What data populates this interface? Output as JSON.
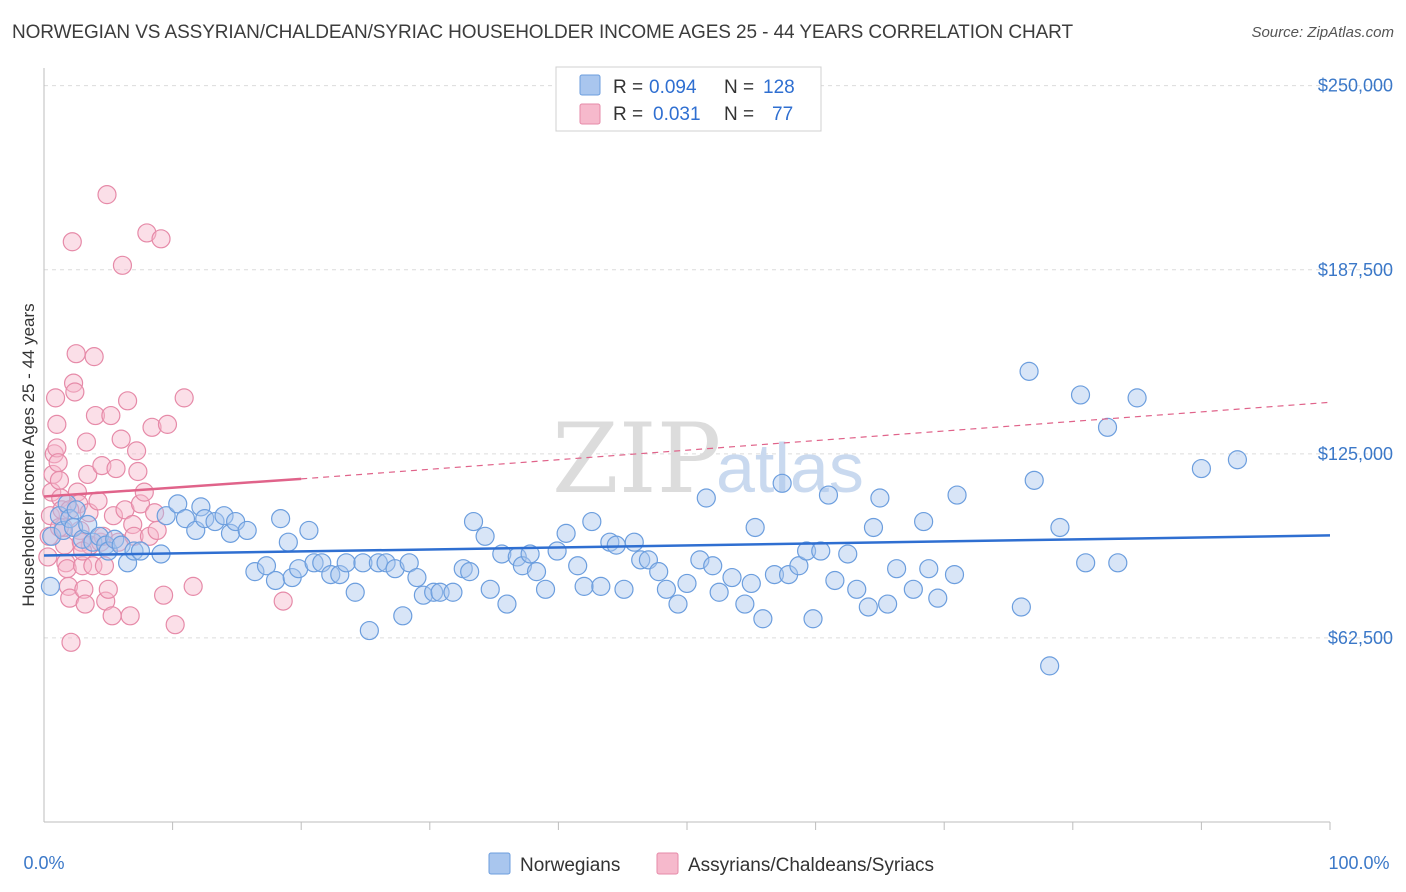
{
  "header": {
    "title": "NORWEGIAN VS ASSYRIAN/CHALDEAN/SYRIAC HOUSEHOLDER INCOME AGES 25 - 44 YEARS CORRELATION CHART",
    "source": "Source: ZipAtlas.com"
  },
  "watermark": {
    "zip": "ZIP",
    "atlas": "atlas"
  },
  "legend_top": {
    "rows": [
      {
        "r_label": "R =",
        "r_value": "0.094",
        "n_label": "N =",
        "n_value": "128"
      },
      {
        "r_label": "R =",
        "r_value": "0.031",
        "n_label": "N =",
        "n_value": "77"
      }
    ]
  },
  "legend_bottom": {
    "items": [
      {
        "label": "Norwegians"
      },
      {
        "label": "Assyrians/Chaldeans/Syriacs"
      }
    ]
  },
  "colors": {
    "blue_fill": "#a9c6ee",
    "blue_stroke": "#6c9ede",
    "blue_line": "#2f6fd1",
    "pink_fill": "#f6b9cc",
    "pink_stroke": "#e68aa8",
    "pink_line": "#e0638a",
    "grid": "#dcdcdc",
    "tick_text": "#3b78c8"
  },
  "chart_data": {
    "type": "scatter",
    "title": "NORWEGIAN VS ASSYRIAN/CHALDEAN/SYRIAC HOUSEHOLDER INCOME AGES 25 - 44 YEARS CORRELATION CHART",
    "xlabel": "",
    "ylabel": "Householder Income Ages 25 - 44 years",
    "xlim": [
      0,
      100
    ],
    "ylim": [
      0,
      256000
    ],
    "x_tick_labels": [
      "0.0%",
      "100.0%"
    ],
    "y_ticks": [
      62500,
      125000,
      187500,
      250000
    ],
    "y_tick_labels": [
      "$62,500",
      "$125,000",
      "$187,500",
      "$250,000"
    ],
    "grid": true,
    "legend_placement": "top-center",
    "series": [
      {
        "name": "Norwegians",
        "r": 0.094,
        "n": 128,
        "trend": {
          "x": [
            0,
            100
          ],
          "y": [
            90500,
            97300
          ]
        },
        "points": [
          [
            0.5,
            80000
          ],
          [
            0.6,
            97000
          ],
          [
            1.2,
            104000
          ],
          [
            1.5,
            99000
          ],
          [
            1.8,
            108000
          ],
          [
            2.0,
            103000
          ],
          [
            2.3,
            100000
          ],
          [
            2.5,
            106000
          ],
          [
            3.0,
            96000
          ],
          [
            3.4,
            101000
          ],
          [
            3.8,
            95000
          ],
          [
            4.3,
            97000
          ],
          [
            4.8,
            94000
          ],
          [
            5.0,
            92000
          ],
          [
            5.5,
            96000
          ],
          [
            6.0,
            94000
          ],
          [
            6.5,
            88000
          ],
          [
            7.0,
            92000
          ],
          [
            7.5,
            92000
          ],
          [
            9.1,
            91000
          ],
          [
            9.5,
            104000
          ],
          [
            10.4,
            108000
          ],
          [
            11.0,
            103000
          ],
          [
            11.8,
            99000
          ],
          [
            12.2,
            107000
          ],
          [
            12.5,
            103000
          ],
          [
            13.3,
            102000
          ],
          [
            14.0,
            104000
          ],
          [
            14.5,
            98000
          ],
          [
            14.9,
            102000
          ],
          [
            15.8,
            99000
          ],
          [
            16.4,
            85000
          ],
          [
            17.3,
            87000
          ],
          [
            18.0,
            82000
          ],
          [
            18.4,
            103000
          ],
          [
            19.0,
            95000
          ],
          [
            19.3,
            83000
          ],
          [
            19.8,
            86000
          ],
          [
            20.6,
            99000
          ],
          [
            21.0,
            88000
          ],
          [
            21.6,
            88000
          ],
          [
            22.3,
            84000
          ],
          [
            23.0,
            84000
          ],
          [
            23.5,
            88000
          ],
          [
            24.2,
            78000
          ],
          [
            24.8,
            88000
          ],
          [
            25.3,
            65000
          ],
          [
            26.0,
            88000
          ],
          [
            26.6,
            88000
          ],
          [
            27.3,
            86000
          ],
          [
            27.9,
            70000
          ],
          [
            28.4,
            88000
          ],
          [
            29.0,
            83000
          ],
          [
            29.5,
            77000
          ],
          [
            30.3,
            78000
          ],
          [
            30.8,
            78000
          ],
          [
            31.8,
            78000
          ],
          [
            32.6,
            86000
          ],
          [
            33.1,
            85000
          ],
          [
            33.4,
            102000
          ],
          [
            34.3,
            97000
          ],
          [
            34.7,
            79000
          ],
          [
            35.6,
            91000
          ],
          [
            36.0,
            74000
          ],
          [
            36.8,
            90000
          ],
          [
            37.2,
            87000
          ],
          [
            37.8,
            91000
          ],
          [
            38.3,
            85000
          ],
          [
            39.0,
            79000
          ],
          [
            39.9,
            92000
          ],
          [
            40.6,
            98000
          ],
          [
            41.5,
            87000
          ],
          [
            42.0,
            80000
          ],
          [
            42.6,
            102000
          ],
          [
            43.3,
            80000
          ],
          [
            44.0,
            95000
          ],
          [
            44.5,
            94000
          ],
          [
            45.1,
            79000
          ],
          [
            45.9,
            95000
          ],
          [
            46.4,
            89000
          ],
          [
            47.0,
            89000
          ],
          [
            47.8,
            85000
          ],
          [
            48.4,
            79000
          ],
          [
            49.3,
            74000
          ],
          [
            50.0,
            81000
          ],
          [
            51.0,
            89000
          ],
          [
            51.5,
            110000
          ],
          [
            52.0,
            87000
          ],
          [
            52.5,
            78000
          ],
          [
            53.5,
            83000
          ],
          [
            54.5,
            74000
          ],
          [
            55.0,
            81000
          ],
          [
            55.3,
            100000
          ],
          [
            55.9,
            69000
          ],
          [
            56.8,
            84000
          ],
          [
            57.4,
            115000
          ],
          [
            57.9,
            84000
          ],
          [
            58.7,
            87000
          ],
          [
            59.3,
            92000
          ],
          [
            59.8,
            69000
          ],
          [
            60.4,
            92000
          ],
          [
            61.0,
            111000
          ],
          [
            61.5,
            82000
          ],
          [
            62.5,
            91000
          ],
          [
            63.2,
            79000
          ],
          [
            64.1,
            73000
          ],
          [
            64.5,
            100000
          ],
          [
            65.0,
            110000
          ],
          [
            65.6,
            74000
          ],
          [
            66.3,
            86000
          ],
          [
            67.6,
            79000
          ],
          [
            68.4,
            102000
          ],
          [
            68.8,
            86000
          ],
          [
            69.5,
            76000
          ],
          [
            70.8,
            84000
          ],
          [
            71.0,
            111000
          ],
          [
            76.0,
            73000
          ],
          [
            76.6,
            153000
          ],
          [
            77.0,
            116000
          ],
          [
            78.2,
            53000
          ],
          [
            79.0,
            100000
          ],
          [
            80.6,
            145000
          ],
          [
            81.0,
            88000
          ],
          [
            82.7,
            134000
          ],
          [
            83.5,
            88000
          ],
          [
            85.0,
            144000
          ],
          [
            90.0,
            120000
          ],
          [
            92.8,
            123000
          ]
        ]
      },
      {
        "name": "Assyrians/Chaldeans/Syriacs",
        "r": 0.031,
        "n": 77,
        "trend": {
          "x": [
            0,
            20
          ],
          "y": [
            110500,
            116500
          ]
        },
        "trend_dashed": {
          "x": [
            20,
            100
          ],
          "y": [
            116500,
            142500
          ]
        },
        "points": [
          [
            0.3,
            90000
          ],
          [
            0.4,
            97000
          ],
          [
            0.5,
            104000
          ],
          [
            0.6,
            112000
          ],
          [
            0.7,
            118000
          ],
          [
            0.8,
            125000
          ],
          [
            0.9,
            144000
          ],
          [
            1.0,
            135000
          ],
          [
            1.0,
            127000
          ],
          [
            1.1,
            122000
          ],
          [
            1.2,
            116000
          ],
          [
            1.3,
            110000
          ],
          [
            1.4,
            106000
          ],
          [
            1.5,
            100000
          ],
          [
            1.6,
            94000
          ],
          [
            1.7,
            88000
          ],
          [
            1.8,
            86000
          ],
          [
            1.9,
            80000
          ],
          [
            2.0,
            76000
          ],
          [
            2.1,
            61000
          ],
          [
            2.2,
            197000
          ],
          [
            2.3,
            149000
          ],
          [
            2.4,
            146000
          ],
          [
            2.5,
            159000
          ],
          [
            2.6,
            112000
          ],
          [
            2.7,
            108000
          ],
          [
            2.8,
            99000
          ],
          [
            2.9,
            95000
          ],
          [
            3.0,
            87000
          ],
          [
            3.1,
            79000
          ],
          [
            3.2,
            74000
          ],
          [
            3.3,
            129000
          ],
          [
            3.4,
            118000
          ],
          [
            3.5,
            105000
          ],
          [
            3.6,
            94000
          ],
          [
            3.8,
            87000
          ],
          [
            3.9,
            158000
          ],
          [
            4.0,
            138000
          ],
          [
            4.2,
            109000
          ],
          [
            4.4,
            95000
          ],
          [
            4.5,
            121000
          ],
          [
            4.6,
            97000
          ],
          [
            4.7,
            87000
          ],
          [
            4.8,
            75000
          ],
          [
            4.9,
            213000
          ],
          [
            5.0,
            79000
          ],
          [
            5.2,
            138000
          ],
          [
            5.3,
            70000
          ],
          [
            5.4,
            104000
          ],
          [
            5.6,
            120000
          ],
          [
            5.8,
            95000
          ],
          [
            6.0,
            130000
          ],
          [
            6.1,
            189000
          ],
          [
            6.3,
            106000
          ],
          [
            6.5,
            143000
          ],
          [
            6.7,
            70000
          ],
          [
            6.9,
            101000
          ],
          [
            7.0,
            97000
          ],
          [
            7.2,
            126000
          ],
          [
            7.3,
            119000
          ],
          [
            7.5,
            108000
          ],
          [
            7.8,
            112000
          ],
          [
            8.0,
            200000
          ],
          [
            8.2,
            97000
          ],
          [
            8.4,
            134000
          ],
          [
            8.6,
            105000
          ],
          [
            8.8,
            99000
          ],
          [
            9.1,
            198000
          ],
          [
            9.3,
            77000
          ],
          [
            9.6,
            135000
          ],
          [
            10.2,
            67000
          ],
          [
            10.9,
            144000
          ],
          [
            11.6,
            80000
          ],
          [
            18.6,
            75000
          ],
          [
            2.0,
            106000
          ],
          [
            1.2,
            100000
          ],
          [
            3.0,
            92000
          ]
        ]
      }
    ]
  }
}
